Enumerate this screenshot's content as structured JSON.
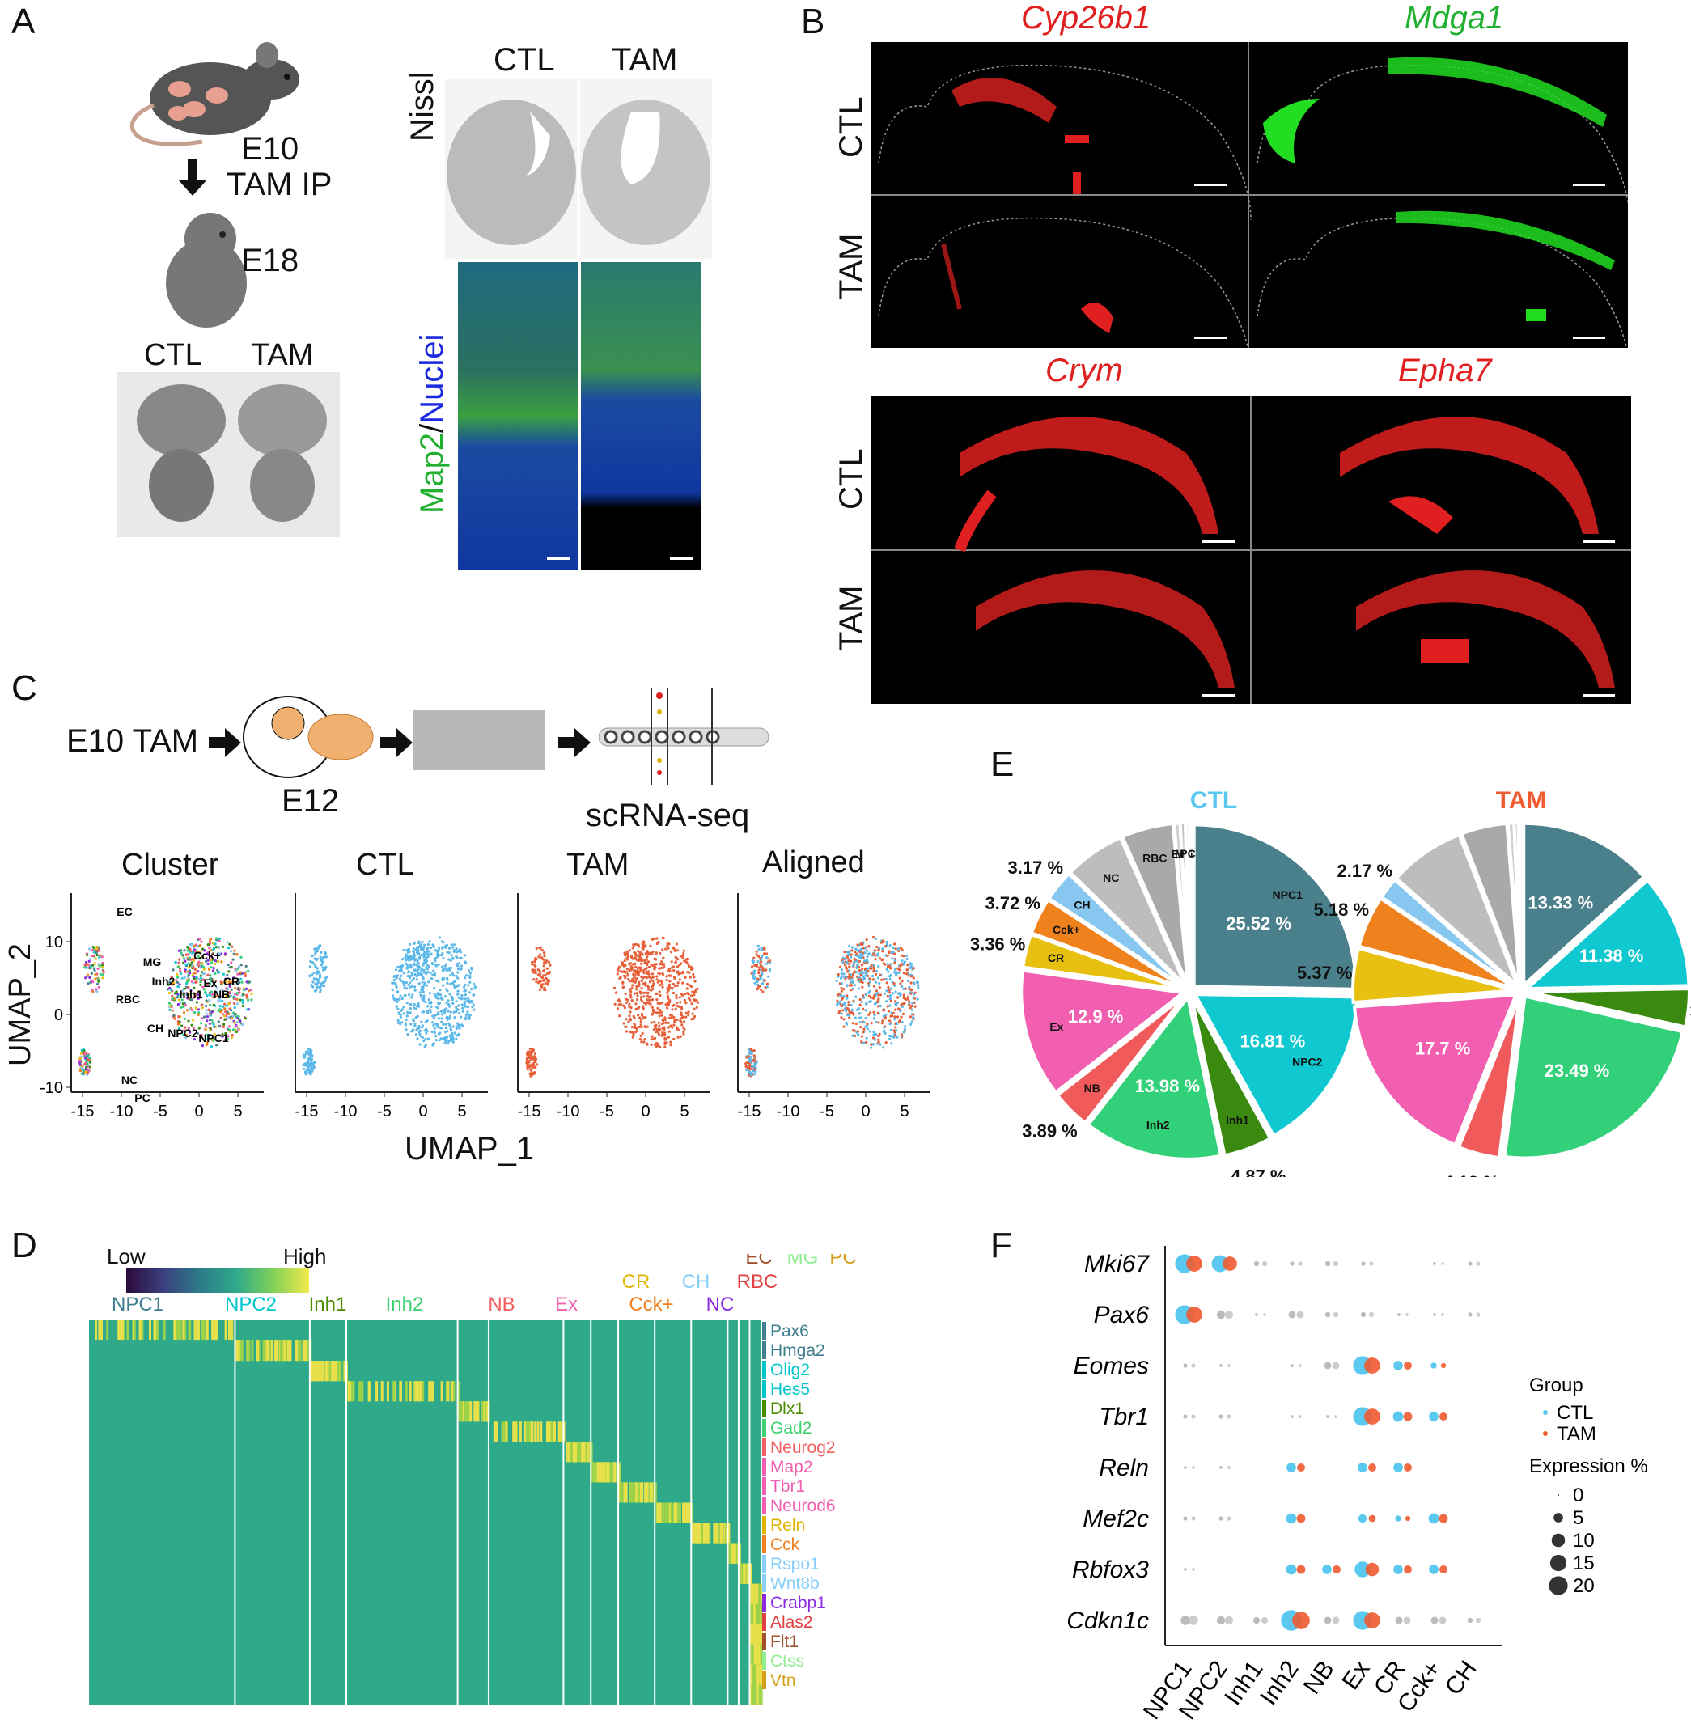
{
  "panel_letters": [
    "A",
    "B",
    "C",
    "D",
    "E",
    "F"
  ],
  "panelA": {
    "timeline": [
      "E10",
      "TAM IP",
      "E18"
    ],
    "brain_labels": [
      "CTL",
      "TAM"
    ],
    "section_labels": [
      "CTL",
      "TAM"
    ],
    "stain_nissl": "Nissl",
    "stain_map2": "Map2",
    "stain_sep": "/",
    "stain_nuclei": "Nuclei"
  },
  "panelB": {
    "genes": [
      {
        "name": "Cyp26b1",
        "color": "#e02020"
      },
      {
        "name": "Mdga1",
        "color": "#22b030"
      },
      {
        "name": "Crym",
        "color": "#e02020"
      },
      {
        "name": "Epha7",
        "color": "#e02020"
      }
    ],
    "rows": [
      "CTL",
      "TAM",
      "CTL",
      "TAM"
    ]
  },
  "panelC": {
    "workflow": [
      "E10 TAM",
      "E12",
      "scRNA-seq"
    ],
    "umap_titles": [
      "Cluster",
      "CTL",
      "TAM",
      "Aligned"
    ],
    "xlabel": "UMAP_1",
    "ylabel": "UMAP_2",
    "xticks": [
      "-15",
      "-10",
      "-5",
      "0",
      "5"
    ],
    "yticks": [
      "10",
      "0",
      "-10"
    ],
    "cluster_labels": [
      "EC",
      "MG",
      "RBC",
      "Cck+",
      "Ex",
      "Inh2",
      "CR",
      "Inh1",
      "NB",
      "CH",
      "NPC2",
      "NPC1",
      "NC",
      "PC"
    ]
  },
  "panelD": {
    "colorbar_low": "Low",
    "colorbar_high": "High",
    "top_groups": [
      {
        "name": "EC",
        "color": "#a0522d"
      },
      {
        "name": "MG",
        "color": "#90ee90"
      },
      {
        "name": "PC",
        "color": "#d4a017"
      },
      {
        "name": "CR",
        "color": "#e0b400"
      },
      {
        "name": "CH",
        "color": "#87cefa"
      },
      {
        "name": "RBC",
        "color": "#e04040"
      }
    ],
    "groups": [
      {
        "name": "NPC1",
        "color": "#3f7f8f"
      },
      {
        "name": "NPC2",
        "color": "#00c5cd"
      },
      {
        "name": "Inh1",
        "color": "#4c8a00"
      },
      {
        "name": "Inh2",
        "color": "#3fd070"
      },
      {
        "name": "NB",
        "color": "#f06060"
      },
      {
        "name": "Ex",
        "color": "#f060b0"
      },
      {
        "name": "Cck+",
        "color": "#f08020"
      },
      {
        "name": "NC",
        "color": "#8a2be2"
      }
    ],
    "markers": [
      {
        "name": "Pax6",
        "color": "#3f7f8f"
      },
      {
        "name": "Hmga2",
        "color": "#3f7f8f"
      },
      {
        "name": "Olig2",
        "color": "#00c5cd"
      },
      {
        "name": "Hes5",
        "color": "#00c5cd"
      },
      {
        "name": "Dlx1",
        "color": "#4c8a00"
      },
      {
        "name": "Gad2",
        "color": "#3fd070"
      },
      {
        "name": "Neurog2",
        "color": "#f06060"
      },
      {
        "name": "Map2",
        "color": "#f060b0"
      },
      {
        "name": "Tbr1",
        "color": "#f060b0"
      },
      {
        "name": "Neurod6",
        "color": "#f060b0"
      },
      {
        "name": "Reln",
        "color": "#e0b400"
      },
      {
        "name": "Cck",
        "color": "#f08020"
      },
      {
        "name": "Rspo1",
        "color": "#87cefa"
      },
      {
        "name": "Wnt8b",
        "color": "#87cefa"
      },
      {
        "name": "Crabp1",
        "color": "#8a2be2"
      },
      {
        "name": "Alas2",
        "color": "#e04040"
      },
      {
        "name": "Flt1",
        "color": "#a0522d"
      },
      {
        "name": "Ctss",
        "color": "#90ee90"
      },
      {
        "name": "Vtn",
        "color": "#d4a017"
      }
    ]
  },
  "panelE": {
    "chart_data": [
      {
        "type": "pie",
        "title": "CTL",
        "title_color": "#5bc8f0",
        "slices": [
          {
            "name": "NPC1",
            "value": 25.52,
            "label": "25.52 %",
            "color": "#4a7f8c"
          },
          {
            "name": "NPC2",
            "value": 16.81,
            "label": "16.81 %",
            "color": "#10c8d0"
          },
          {
            "name": "Inh1",
            "value": 4.87,
            "label": "4.87 %",
            "color": "#3a8a10"
          },
          {
            "name": "Inh2",
            "value": 13.98,
            "label": "13.98 %",
            "color": "#33d07a"
          },
          {
            "name": "NB",
            "value": 3.89,
            "label": "3.89 %",
            "color": "#f05a5a"
          },
          {
            "name": "Ex",
            "value": 12.9,
            "label": "12.9 %",
            "color": "#f25fb0"
          },
          {
            "name": "CR",
            "value": 3.36,
            "label": "3.36 %",
            "color": "#e8c010"
          },
          {
            "name": "Cck+",
            "value": 3.72,
            "label": "3.72 %",
            "color": "#f0821e"
          },
          {
            "name": "CH",
            "value": 3.17,
            "label": "3.17 %",
            "color": "#88c8f0"
          },
          {
            "name": "NC",
            "value": 6.1,
            "label": "",
            "color": "#bdbdbd"
          },
          {
            "name": "RBC",
            "value": 5.2,
            "label": "",
            "color": "#a9a9a9"
          },
          {
            "name": "EC",
            "value": 0.6,
            "label": "",
            "color": "#d0d0d0"
          },
          {
            "name": "MG",
            "value": 0.5,
            "label": "",
            "color": "#c2c2c2"
          },
          {
            "name": "PC",
            "value": 0.38,
            "label": "",
            "color": "#e0e0e0"
          }
        ]
      },
      {
        "type": "pie",
        "title": "TAM",
        "title_color": "#f05a30",
        "slices": [
          {
            "name": "NPC1",
            "value": 13.33,
            "label": "13.33 %",
            "color": "#4a7f8c"
          },
          {
            "name": "NPC2",
            "value": 11.38,
            "label": "11.38 %",
            "color": "#10c8d0"
          },
          {
            "name": "Inh1",
            "value": 3.79,
            "label": "3.79 %",
            "color": "#3a8a10"
          },
          {
            "name": "Inh2",
            "value": 23.49,
            "label": "23.49 %",
            "color": "#33d07a"
          },
          {
            "name": "NB",
            "value": 4.13,
            "label": "4.13 %",
            "color": "#f05a5a"
          },
          {
            "name": "Ex",
            "value": 17.7,
            "label": "17.7 %",
            "color": "#f25fb0"
          },
          {
            "name": "CR",
            "value": 5.37,
            "label": "5.37 %",
            "color": "#e8c010"
          },
          {
            "name": "Cck+",
            "value": 5.18,
            "label": "5.18 %",
            "color": "#f0821e"
          },
          {
            "name": "CH",
            "value": 2.17,
            "label": "2.17 %",
            "color": "#88c8f0"
          },
          {
            "name": "NC",
            "value": 7.6,
            "label": "",
            "color": "#bdbdbd"
          },
          {
            "name": "RBC",
            "value": 4.6,
            "label": "",
            "color": "#a9a9a9"
          },
          {
            "name": "EC",
            "value": 0.6,
            "label": "",
            "color": "#d0d0d0"
          },
          {
            "name": "MG",
            "value": 0.4,
            "label": "",
            "color": "#c2c2c2"
          },
          {
            "name": "PC",
            "value": 0.26,
            "label": "",
            "color": "#e0e0e0"
          }
        ]
      }
    ],
    "inside_labels_ctl": [
      "NPC1",
      "NPC2",
      "Inh1",
      "Inh2",
      "NB",
      "Ex",
      "CR",
      "Cck+",
      "CH",
      "NC",
      "RBC",
      "EC",
      "MG",
      "PC"
    ]
  },
  "panelF": {
    "chart_data": {
      "type": "scatter",
      "genes": [
        "Mki67",
        "Pax6",
        "Eomes",
        "Tbr1",
        "Reln",
        "Mef2c",
        "Rbfox3",
        "Cdkn1c"
      ],
      "clusters": [
        "NPC1",
        "NPC2",
        "Inh1",
        "Inh2",
        "NB",
        "Ex",
        "CR",
        "Cck+",
        "CH"
      ],
      "legend_group_title": "Group",
      "legend_groups": [
        {
          "name": "CTL",
          "color": "#5bc8f0"
        },
        {
          "name": "TAM",
          "color": "#f05a30"
        }
      ],
      "legend_size_title": "Expression %",
      "legend_sizes": [
        0,
        5,
        10,
        15,
        20
      ],
      "dots": [
        [
          [
            20,
            "c"
          ],
          [
            16,
            "c"
          ],
          [
            3,
            "g"
          ],
          [
            2,
            "g"
          ],
          [
            3,
            "g"
          ],
          [
            2,
            "g"
          ],
          [
            0,
            "g"
          ],
          [
            1,
            "g"
          ],
          [
            2,
            "g"
          ]
        ],
        [
          [
            20,
            "c"
          ],
          [
            8,
            "g"
          ],
          [
            1,
            "g"
          ],
          [
            6,
            "g"
          ],
          [
            3,
            "g"
          ],
          [
            3,
            "g"
          ],
          [
            1,
            "g"
          ],
          [
            1,
            "g"
          ],
          [
            2,
            "g"
          ]
        ],
        [
          [
            2,
            "g"
          ],
          [
            1,
            "g"
          ],
          [
            0,
            "g"
          ],
          [
            1,
            "g"
          ],
          [
            6,
            "g"
          ],
          [
            20,
            "c"
          ],
          [
            5,
            "c"
          ],
          [
            2,
            "c"
          ],
          [
            0,
            "g"
          ]
        ],
        [
          [
            2,
            "g"
          ],
          [
            2,
            "g"
          ],
          [
            0,
            "g"
          ],
          [
            1,
            "g"
          ],
          [
            1,
            "g"
          ],
          [
            20,
            "c"
          ],
          [
            6,
            "c"
          ],
          [
            5,
            "c"
          ],
          [
            0,
            "g"
          ]
        ],
        [
          [
            1,
            "g"
          ],
          [
            1,
            "g"
          ],
          [
            0,
            "g"
          ],
          [
            5,
            "c"
          ],
          [
            0,
            "g"
          ],
          [
            5,
            "c"
          ],
          [
            5,
            "c"
          ],
          [
            0,
            "g"
          ],
          [
            0,
            "g"
          ]
        ],
        [
          [
            2,
            "g"
          ],
          [
            2,
            "g"
          ],
          [
            0,
            "g"
          ],
          [
            6,
            "c"
          ],
          [
            0,
            "g"
          ],
          [
            4,
            "c"
          ],
          [
            2,
            "c"
          ],
          [
            6,
            "c"
          ],
          [
            0,
            "g"
          ]
        ],
        [
          [
            1,
            "g"
          ],
          [
            0,
            "g"
          ],
          [
            0,
            "g"
          ],
          [
            6,
            "c"
          ],
          [
            5,
            "c"
          ],
          [
            14,
            "c"
          ],
          [
            5,
            "c"
          ],
          [
            5,
            "c"
          ],
          [
            0,
            "g"
          ]
        ],
        [
          [
            10,
            "g"
          ],
          [
            8,
            "g"
          ],
          [
            5,
            "g"
          ],
          [
            24,
            "c"
          ],
          [
            6,
            "g"
          ],
          [
            20,
            "c"
          ],
          [
            6,
            "g"
          ],
          [
            6,
            "g"
          ],
          [
            3,
            "g"
          ]
        ]
      ]
    }
  }
}
